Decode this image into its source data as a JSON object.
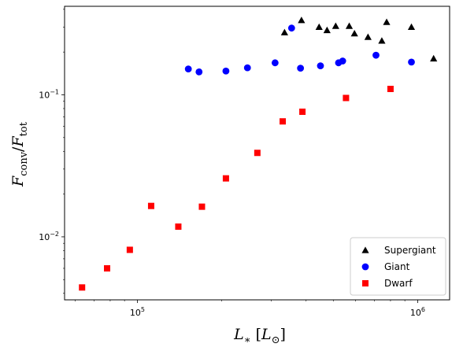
{
  "chart_data": {
    "type": "scatter",
    "title": "",
    "x_scale": "log",
    "y_scale": "log",
    "xlim": [
      55000,
      1300000
    ],
    "ylim": [
      0.0036,
      0.42
    ],
    "xlabel": {
      "main": "L",
      "sub": "∗",
      "unit_open": " [",
      "unit": "L",
      "unit_sub": "⊙",
      "unit_close": "]"
    },
    "ylabel": {
      "num": "F",
      "num_sub": "conv",
      "slash": "/",
      "den": "F",
      "den_sub": "tot"
    },
    "x_ticks": [
      {
        "value": 100000,
        "base": "10",
        "exp": "5"
      },
      {
        "value": 1000000,
        "base": "10",
        "exp": "6"
      }
    ],
    "y_ticks": [
      {
        "value": 0.01,
        "base": "10",
        "exp": "−2"
      },
      {
        "value": 0.1,
        "base": "10",
        "exp": "−1"
      }
    ],
    "legend_position": "lower-right",
    "series": [
      {
        "name": "Supergiant",
        "marker": "triangle",
        "color": "#000000",
        "points": [
          {
            "x": 335000,
            "y": 0.275
          },
          {
            "x": 385000,
            "y": 0.335
          },
          {
            "x": 445000,
            "y": 0.3
          },
          {
            "x": 475000,
            "y": 0.285
          },
          {
            "x": 510000,
            "y": 0.305
          },
          {
            "x": 570000,
            "y": 0.305
          },
          {
            "x": 595000,
            "y": 0.27
          },
          {
            "x": 665000,
            "y": 0.255
          },
          {
            "x": 745000,
            "y": 0.24
          },
          {
            "x": 775000,
            "y": 0.325
          },
          {
            "x": 950000,
            "y": 0.3
          },
          {
            "x": 1140000,
            "y": 0.18
          }
        ]
      },
      {
        "name": "Giant",
        "marker": "circle",
        "color": "#0000ff",
        "points": [
          {
            "x": 152000,
            "y": 0.152
          },
          {
            "x": 166000,
            "y": 0.145
          },
          {
            "x": 207000,
            "y": 0.147
          },
          {
            "x": 247000,
            "y": 0.155
          },
          {
            "x": 310000,
            "y": 0.168
          },
          {
            "x": 355000,
            "y": 0.295
          },
          {
            "x": 382000,
            "y": 0.154
          },
          {
            "x": 450000,
            "y": 0.16
          },
          {
            "x": 522000,
            "y": 0.168
          },
          {
            "x": 540000,
            "y": 0.173
          },
          {
            "x": 710000,
            "y": 0.19
          },
          {
            "x": 950000,
            "y": 0.17
          }
        ]
      },
      {
        "name": "Dwarf",
        "marker": "square",
        "color": "#ff0000",
        "points": [
          {
            "x": 63500,
            "y": 0.0044
          },
          {
            "x": 78000,
            "y": 0.006
          },
          {
            "x": 94000,
            "y": 0.0081
          },
          {
            "x": 112000,
            "y": 0.0165
          },
          {
            "x": 140000,
            "y": 0.0118
          },
          {
            "x": 170000,
            "y": 0.0163
          },
          {
            "x": 207000,
            "y": 0.0258
          },
          {
            "x": 268000,
            "y": 0.039
          },
          {
            "x": 330000,
            "y": 0.065
          },
          {
            "x": 388000,
            "y": 0.076
          },
          {
            "x": 555000,
            "y": 0.095
          },
          {
            "x": 800000,
            "y": 0.11
          }
        ]
      }
    ]
  }
}
